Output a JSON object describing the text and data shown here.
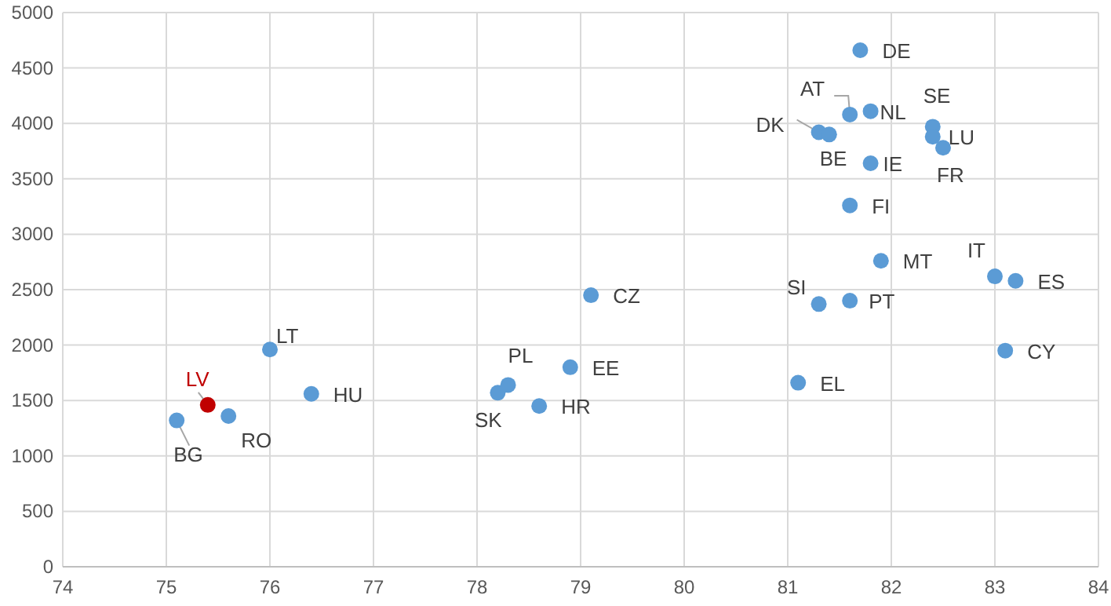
{
  "chart_data": {
    "type": "scatter",
    "xlim": [
      74,
      84
    ],
    "xticks": [
      74,
      75,
      76,
      77,
      78,
      79,
      80,
      81,
      82,
      83,
      84
    ],
    "ylim": [
      0,
      5000
    ],
    "yticks": [
      0,
      500,
      1000,
      1500,
      2000,
      2500,
      3000,
      3500,
      4000,
      4500,
      5000
    ],
    "grid": true,
    "marker": "circle",
    "series": [
      {
        "x": [
          75.1,
          75.4,
          75.6,
          76.0,
          76.4,
          78.2,
          78.3,
          78.6,
          78.9,
          79.1,
          81.1,
          81.3,
          81.6,
          81.9,
          83.0,
          83.2,
          83.1,
          81.6,
          81.8,
          81.3,
          81.4,
          81.6,
          81.8,
          81.7,
          82.4,
          82.4,
          82.5
        ],
        "values": [
          1320,
          1460,
          1360,
          1960,
          1560,
          1570,
          1640,
          1450,
          1800,
          2450,
          1660,
          2370,
          2400,
          2760,
          2620,
          2580,
          1950,
          3260,
          3640,
          3920,
          3900,
          4080,
          4110,
          4660,
          3970,
          3880,
          3780
        ],
        "colors": [
          "#5b9bd5",
          "#c00000",
          "#5b9bd5",
          "#5b9bd5",
          "#5b9bd5",
          "#5b9bd5",
          "#5b9bd5",
          "#5b9bd5",
          "#5b9bd5",
          "#5b9bd5",
          "#5b9bd5",
          "#5b9bd5",
          "#5b9bd5",
          "#5b9bd5",
          "#5b9bd5",
          "#5b9bd5",
          "#5b9bd5",
          "#5b9bd5",
          "#5b9bd5",
          "#5b9bd5",
          "#5b9bd5",
          "#5b9bd5",
          "#5b9bd5",
          "#5b9bd5",
          "#5b9bd5",
          "#5b9bd5",
          "#5b9bd5"
        ]
      }
    ],
    "annotations": [
      {
        "text": "BG",
        "x": 75.1,
        "y": 1320
      },
      {
        "text": "LV",
        "x": 75.4,
        "y": 1460
      },
      {
        "text": "RO",
        "x": 75.6,
        "y": 1360
      },
      {
        "text": "LT",
        "x": 76.0,
        "y": 1960
      },
      {
        "text": "HU",
        "x": 76.4,
        "y": 1560
      },
      {
        "text": "SK",
        "x": 78.2,
        "y": 1570
      },
      {
        "text": "PL",
        "x": 78.3,
        "y": 1640
      },
      {
        "text": "HR",
        "x": 78.6,
        "y": 1450
      },
      {
        "text": "EE",
        "x": 78.9,
        "y": 1800
      },
      {
        "text": "CZ",
        "x": 79.1,
        "y": 2450
      },
      {
        "text": "EL",
        "x": 81.1,
        "y": 1660
      },
      {
        "text": "SI",
        "x": 81.3,
        "y": 2370
      },
      {
        "text": "PT",
        "x": 81.6,
        "y": 2400
      },
      {
        "text": "MT",
        "x": 81.9,
        "y": 2760
      },
      {
        "text": "IT",
        "x": 83.0,
        "y": 2620
      },
      {
        "text": "ES",
        "x": 83.2,
        "y": 2580
      },
      {
        "text": "CY",
        "x": 83.1,
        "y": 1950
      },
      {
        "text": "FI",
        "x": 81.6,
        "y": 3260
      },
      {
        "text": "IE",
        "x": 81.8,
        "y": 3640
      },
      {
        "text": "DK",
        "x": 81.3,
        "y": 3920
      },
      {
        "text": "BE",
        "x": 81.4,
        "y": 3900
      },
      {
        "text": "AT",
        "x": 81.6,
        "y": 4080
      },
      {
        "text": "NL",
        "x": 81.8,
        "y": 4110
      },
      {
        "text": "DE",
        "x": 81.7,
        "y": 4660
      },
      {
        "text": "SE",
        "x": 82.4,
        "y": 3970
      },
      {
        "text": "LU",
        "x": 82.4,
        "y": 3880
      },
      {
        "text": "FR",
        "x": 82.5,
        "y": 3780
      }
    ]
  }
}
